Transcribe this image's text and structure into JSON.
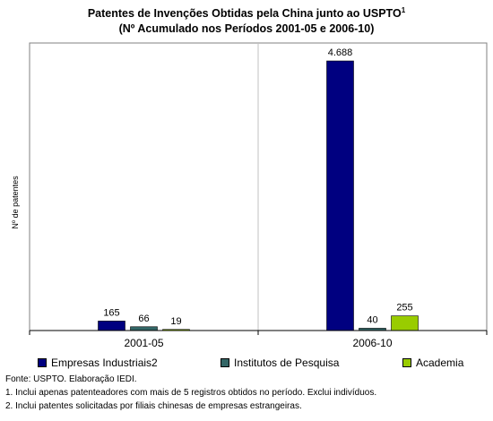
{
  "chart_data": {
    "type": "bar",
    "title": "Patentes de Invenções Obtidas pela China junto ao USPTO",
    "title_superscript": "1",
    "subtitle": "(Nº Acumulado nos Períodos 2001-05 e 2006-10)",
    "ylabel": "Nº de patentes",
    "xlabel": "",
    "categories": [
      "2001-05",
      "2006-10"
    ],
    "series": [
      {
        "name": "Empresas Industriais2",
        "color": "#000080",
        "values": [
          165,
          4688
        ],
        "labels": [
          "165",
          "4.688"
        ]
      },
      {
        "name": "Institutos de Pesquisa",
        "color": "#336666",
        "values": [
          66,
          40
        ],
        "labels": [
          "66",
          "40"
        ]
      },
      {
        "name": "Academia",
        "color": "#99CC00",
        "values": [
          19,
          255
        ],
        "labels": [
          "19",
          "255"
        ]
      }
    ],
    "ylim": [
      0,
      5000
    ],
    "grid": false,
    "legend_position": "bottom"
  },
  "footnotes": [
    "Fonte: USPTO. Elaboração IEDI.",
    "1. Inclui apenas patenteadores com mais de 5 registros obtidos no período. Exclui indivíduos.",
    "2. Inclui patentes solicitadas por filiais chinesas de empresas estrangeiras."
  ]
}
